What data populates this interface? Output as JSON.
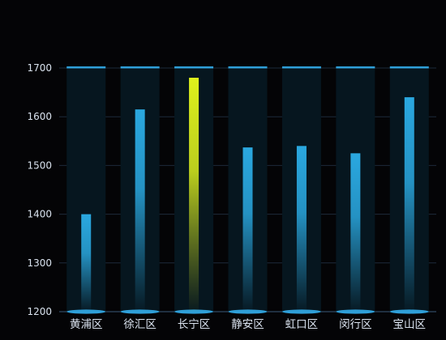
{
  "chart_data": {
    "type": "bar",
    "categories": [
      "黄浦区",
      "徐汇区",
      "长宁区",
      "静安区",
      "虹口区",
      "闵行区",
      "宝山区"
    ],
    "values": [
      1400,
      1615,
      1680,
      1537,
      1540,
      1525,
      1640
    ],
    "ylim": [
      1200,
      1700
    ],
    "yticks": [
      1200,
      1300,
      1400,
      1500,
      1600,
      1700
    ],
    "grid": true,
    "legend": "none",
    "highlight_index": 2,
    "colors": {
      "bar": "#2aa8e0",
      "highlight": "#d8ec1e",
      "background_bar": "#06161f",
      "cap": "#2f9fd8",
      "grid": "#1d2a3a",
      "axis": "#3a5a7a",
      "text": "#d9e2ee"
    }
  }
}
